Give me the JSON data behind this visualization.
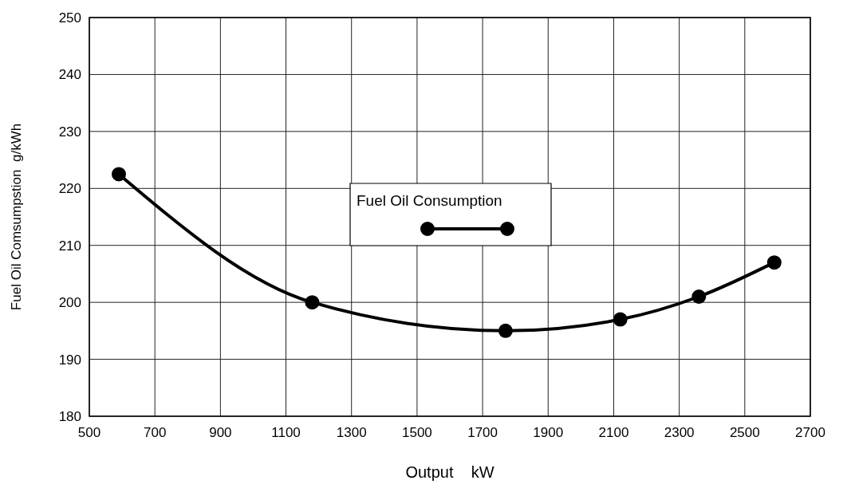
{
  "chart_data": {
    "type": "line",
    "xlabel": "Output    kW",
    "ylabel": "Fuel Oil Comsumpstion  g/kWh",
    "x": [
      590,
      1180,
      1770,
      2120,
      2360,
      2590
    ],
    "series": [
      {
        "name": "Fuel Oil Consumption",
        "color": "#000000",
        "values": [
          222.5,
          200,
          195,
          197,
          201,
          207
        ]
      }
    ],
    "xlim": [
      500,
      2700
    ],
    "xticks": [
      500,
      700,
      900,
      1100,
      1300,
      1500,
      1700,
      1900,
      2100,
      2300,
      2500,
      2700
    ],
    "ylim": [
      180,
      250
    ],
    "yticks": [
      180,
      190,
      200,
      210,
      220,
      230,
      240,
      250
    ],
    "grid": true,
    "legend": "center",
    "marker": "circle",
    "line_style": "solid"
  }
}
